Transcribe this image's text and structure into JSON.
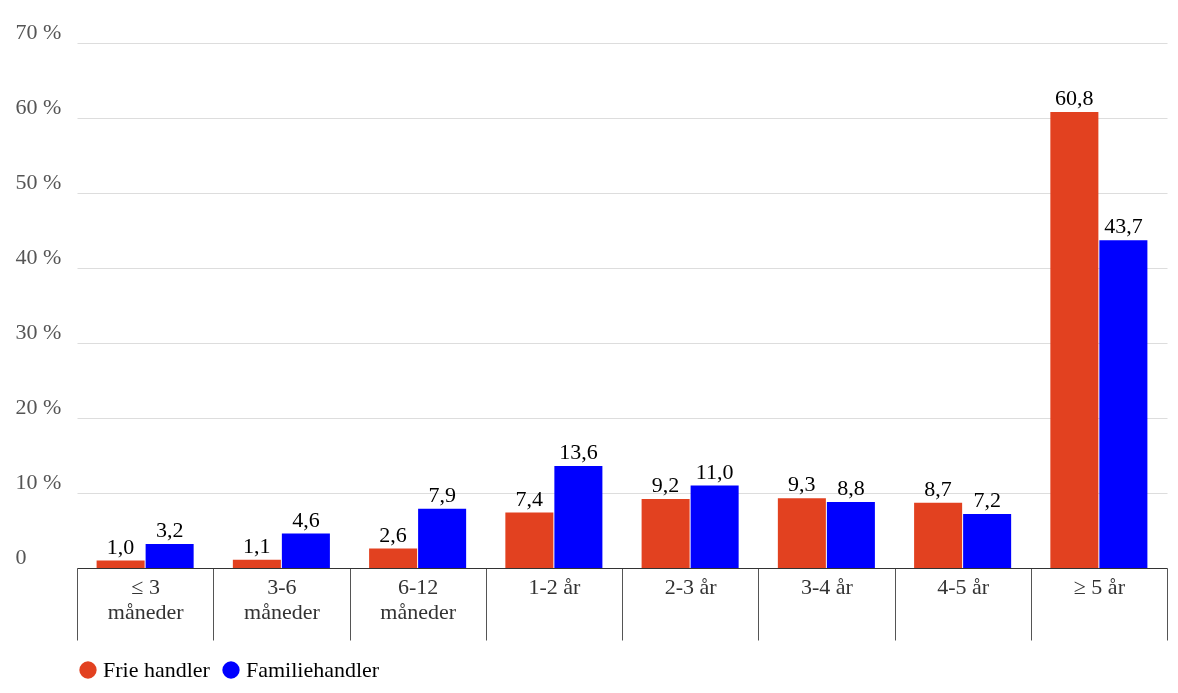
{
  "chart_data": {
    "type": "bar",
    "categories": [
      "≤ 3 måneder",
      "3-6 måneder",
      "6-12 måneder",
      "1-2 år",
      "2-3 år",
      "3-4 år",
      "4-5 år",
      "≥ 5 år"
    ],
    "series": [
      {
        "name": "Frie handler",
        "color": "#e24120",
        "values": [
          1.0,
          1.1,
          2.6,
          7.4,
          9.2,
          9.3,
          8.7,
          60.8
        ],
        "value_labels": [
          "1,0",
          "1,1",
          "2,6",
          "7,4",
          "9,2",
          "9,3",
          "8,7",
          "60,8"
        ]
      },
      {
        "name": "Familiehandler",
        "color": "#0000ff",
        "values": [
          3.2,
          4.6,
          7.9,
          13.6,
          11.0,
          8.8,
          7.2,
          43.7
        ],
        "value_labels": [
          "3,2",
          "4,6",
          "7,9",
          "13,6",
          "11,0",
          "8,8",
          "7,2",
          "43,7"
        ]
      }
    ],
    "ylim": [
      0,
      70
    ],
    "yticks": [
      0,
      {
        "value": 10,
        "label": "10 %"
      },
      {
        "value": 20,
        "label": "20 %"
      },
      {
        "value": 30,
        "label": "30 %"
      },
      {
        "value": 40,
        "label": "40 %"
      },
      {
        "value": 50,
        "label": "50 %"
      },
      {
        "value": 60,
        "label": "60 %"
      },
      {
        "value": 70,
        "label": "70 %"
      }
    ],
    "grid": "y",
    "legend": "bottom"
  }
}
